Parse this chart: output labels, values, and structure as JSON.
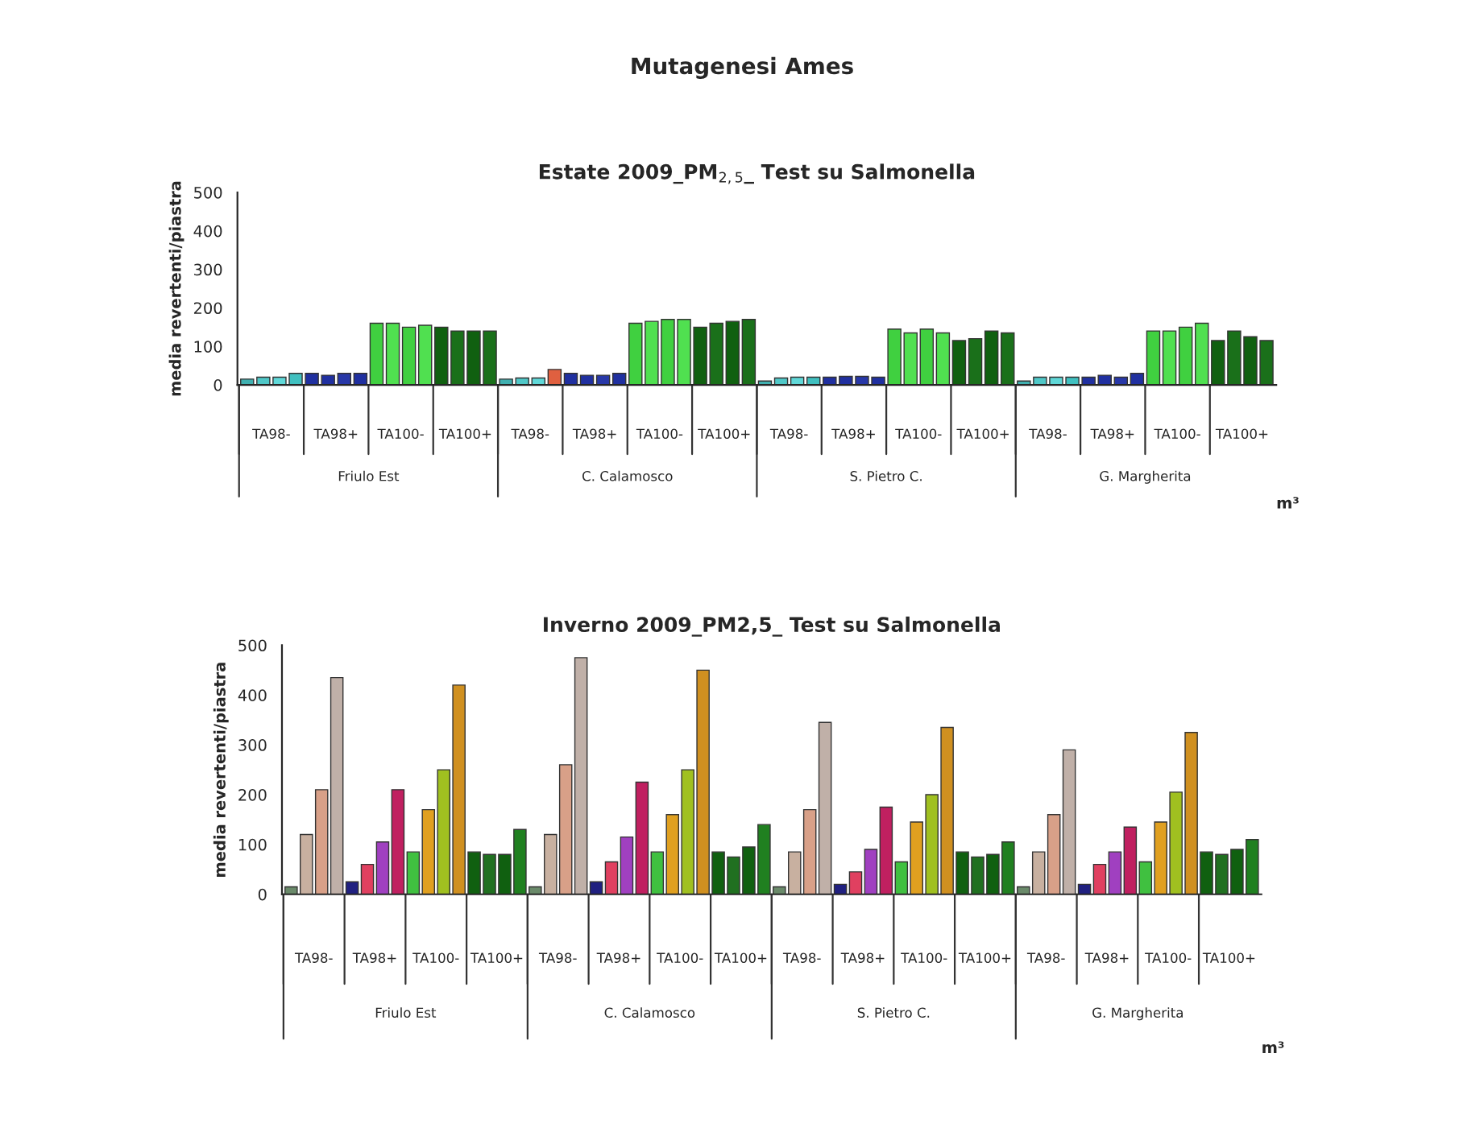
{
  "chart_data": [
    {
      "type": "bar",
      "title": "Estate 2009_PM$_{2,5}$_ Test su Salmonella",
      "ylabel": "media revertenti/piastra",
      "categories": [
        null,
        null,
        null,
        null,
        null,
        null,
        null,
        null,
        null,
        null,
        null,
        null,
        null,
        null,
        null,
        null,
        null,
        null,
        null,
        null,
        null,
        null,
        null,
        null,
        null,
        null,
        null,
        null,
        null,
        null,
        null,
        null,
        null,
        null,
        null,
        null,
        null,
        null,
        null,
        null,
        null,
        null,
        null,
        null,
        null,
        null,
        null,
        null,
        null,
        null,
        null,
        null,
        null,
        null,
        null,
        null,
        null,
        null,
        null,
        null,
        null,
        null,
        null,
        null
      ],
      "values": [
        15,
        20,
        20,
        30,
        30,
        25,
        30,
        30,
        160,
        160,
        150,
        155,
        150,
        140,
        140,
        140,
        15,
        18,
        18,
        40,
        30,
        25,
        25,
        30,
        160,
        165,
        170,
        170,
        150,
        160,
        165,
        170,
        10,
        18,
        20,
        20,
        20,
        22,
        22,
        20,
        145,
        135,
        145,
        135,
        115,
        120,
        140,
        135,
        10,
        20,
        20,
        20,
        20,
        25,
        20,
        30,
        140,
        140,
        150,
        160,
        115,
        140,
        125,
        115
      ],
      "colors": [
        "#40b0b0",
        "#50c8c8",
        "#60d8d8",
        "#40c0c0",
        "#2030a0",
        "#2030a0",
        "#2838a8",
        "#2030a0",
        "#40d040",
        "#50e050",
        "#40d040",
        "#50e050",
        "#106010",
        "#1a701a",
        "#106010",
        "#1a701a",
        "#40b0b0",
        "#50c8c8",
        "#60d8d8",
        "#e06040",
        "#2030a0",
        "#2030a0",
        "#2838a8",
        "#2030a0",
        "#40d040",
        "#50e050",
        "#40d040",
        "#50e050",
        "#106010",
        "#1a701a",
        "#106010",
        "#1a701a",
        "#40b0b0",
        "#50c8c8",
        "#60d8d8",
        "#40c0c0",
        "#2030a0",
        "#2030a0",
        "#2838a8",
        "#2030a0",
        "#40d040",
        "#50e050",
        "#40d040",
        "#50e050",
        "#106010",
        "#1a701a",
        "#106010",
        "#1a701a",
        "#40b0b0",
        "#50c8c8",
        "#60d8d8",
        "#40c0c0",
        "#2030a0",
        "#2030a0",
        "#2838a8",
        "#2030a0",
        "#40d040",
        "#50e050",
        "#40d040",
        "#50e050",
        "#106010",
        "#1a701a",
        "#106010",
        "#1a701a"
      ],
      "ylim": [
        0,
        500
      ],
      "yticks": [
        0,
        100,
        200,
        300,
        400,
        500
      ],
      "grid": false,
      "legend": false,
      "annotations": [
        "TA98-",
        "TA98+",
        "TA100-",
        "TA100+",
        "TA98-",
        "TA98+",
        "TA100-",
        "TA100+",
        "TA98-",
        "TA98+",
        "TA100-",
        "TA100+",
        "TA98-",
        "TA98+",
        "TA100-",
        "TA100+",
        "Friulo Est",
        "C. Calamosco",
        "S. Pietro C.",
        "G. Margherita",
        "m³",
        "Mutagenesi Ames"
      ]
    },
    {
      "type": "bar",
      "title": "Inverno 2009_PM2,5_ Test su Salmonella",
      "ylabel": "media revertenti/piastra",
      "categories": [
        null,
        null,
        null,
        null,
        null,
        null,
        null,
        null,
        null,
        null,
        null,
        null,
        null,
        null,
        null,
        null,
        null,
        null,
        null,
        null,
        null,
        null,
        null,
        null,
        null,
        null,
        null,
        null,
        null,
        null,
        null,
        null,
        null,
        null,
        null,
        null,
        null,
        null,
        null,
        null,
        null,
        null,
        null,
        null,
        null,
        null,
        null,
        null,
        null,
        null,
        null,
        null,
        null,
        null,
        null,
        null,
        null,
        null,
        null,
        null,
        null,
        null,
        null,
        null
      ],
      "values": [
        15,
        120,
        210,
        435,
        25,
        60,
        105,
        210,
        85,
        170,
        250,
        420,
        85,
        80,
        80,
        130,
        15,
        120,
        260,
        475,
        25,
        65,
        115,
        225,
        85,
        160,
        250,
        450,
        85,
        75,
        95,
        140,
        15,
        85,
        170,
        345,
        20,
        45,
        90,
        175,
        65,
        145,
        200,
        335,
        85,
        75,
        80,
        105,
        15,
        85,
        160,
        290,
        20,
        60,
        85,
        135,
        65,
        145,
        205,
        325,
        85,
        80,
        90,
        110
      ],
      "colors": [
        "#6a8a6a",
        "#c8b0a0",
        "#d8a088",
        "#c0b0a8",
        "#202080",
        "#e04060",
        "#a040c0",
        "#c02060",
        "#40c040",
        "#e0a020",
        "#a0c020",
        "#d09020",
        "#106010",
        "#207020",
        "#106010",
        "#208020",
        "#6a8a6a",
        "#c8b0a0",
        "#d8a088",
        "#c0b0a8",
        "#202080",
        "#e04060",
        "#a040c0",
        "#c02060",
        "#40c040",
        "#e0a020",
        "#a0c020",
        "#d09020",
        "#106010",
        "#207020",
        "#106010",
        "#208020",
        "#6a8a6a",
        "#c8b0a0",
        "#d8a088",
        "#c0b0a8",
        "#202080",
        "#e04060",
        "#a040c0",
        "#c02060",
        "#40c040",
        "#e0a020",
        "#a0c020",
        "#d09020",
        "#106010",
        "#207020",
        "#106010",
        "#208020",
        "#6a8a6a",
        "#c8b0a0",
        "#d8a088",
        "#c0b0a8",
        "#202080",
        "#e04060",
        "#a040c0",
        "#c02060",
        "#40c040",
        "#e0a020",
        "#a0c020",
        "#d09020",
        "#106010",
        "#207020",
        "#106010",
        "#208020"
      ],
      "ylim": [
        0,
        500
      ],
      "yticks": [
        0,
        100,
        200,
        300,
        400,
        500
      ],
      "grid": false,
      "legend": false,
      "annotations": [
        "TA98-",
        "TA98+",
        "TA100-",
        "TA100+",
        "TA98-",
        "TA98+",
        "TA100-",
        "TA100+",
        "TA98-",
        "TA98+",
        "TA100-",
        "TA100+",
        "TA98-",
        "TA98+",
        "TA100-",
        "TA100+",
        "Friulo Est",
        "C. Calamosco",
        "S. Pietro C.",
        "G. Margherita",
        "m³"
      ]
    }
  ]
}
